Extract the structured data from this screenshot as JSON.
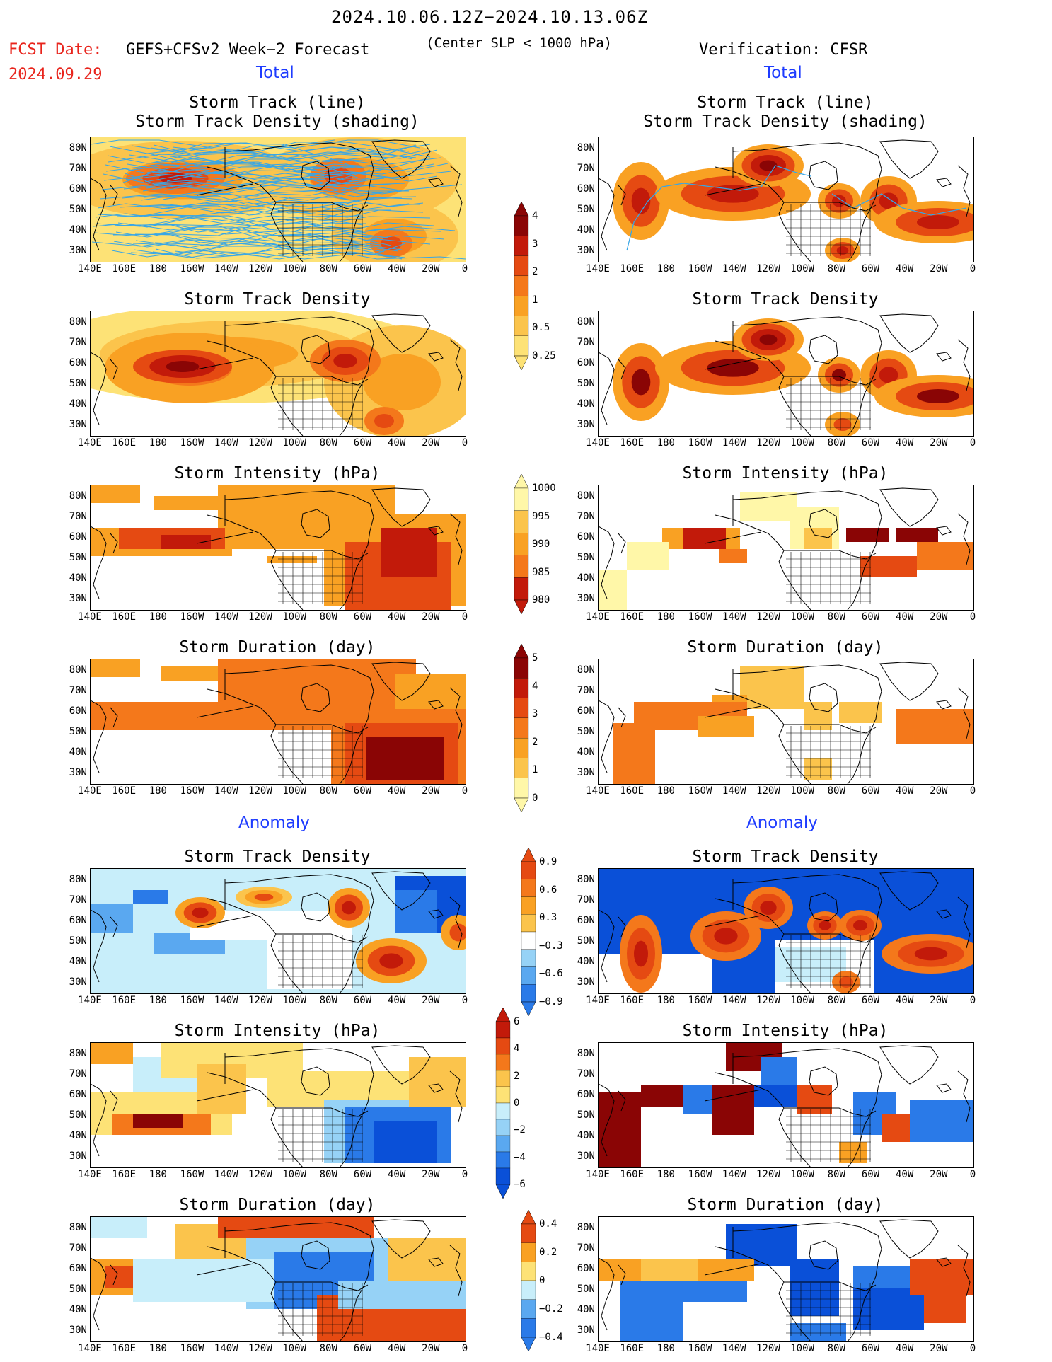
{
  "header": {
    "date_range": "2024.10.06.12Z−2024.10.13.06Z",
    "fcst_label": "FCST Date:",
    "fcst_date": "2024.09.29",
    "model": "GEFS+CFSv2 Week−2 Forecast",
    "criterion": "(Center SLP < 1000 hPa)",
    "verification": "Verification: CFSR"
  },
  "sections": {
    "total_left": "Total",
    "total_right": "Total",
    "anomaly_left": "Anomaly",
    "anomaly_right": "Anomaly"
  },
  "panel_titles": {
    "track_line": "Storm Track (line)",
    "track_density_shading": "Storm Track Density (shading)",
    "track_density": "Storm Track Density",
    "intensity": "Storm Intensity (hPa)",
    "duration": "Storm Duration (day)"
  },
  "axes": {
    "lat_labels": [
      "80N",
      "70N",
      "60N",
      "50N",
      "40N",
      "30N"
    ],
    "lon_labels": [
      "140E",
      "160E",
      "180",
      "160W",
      "140W",
      "120W",
      "100W",
      "80W",
      "60W",
      "40W",
      "20W",
      "0"
    ]
  },
  "colorbars": {
    "density_total": [
      "4",
      "3",
      "2",
      "1",
      "0.5",
      "0.25"
    ],
    "intensity_total": [
      "1000",
      "995",
      "990",
      "985",
      "980"
    ],
    "duration_total": [
      "5",
      "4",
      "3",
      "2",
      "1",
      "0"
    ],
    "density_anom": [
      "0.9",
      "0.6",
      "0.3",
      "−0.3",
      "−0.6",
      "−0.9"
    ],
    "intensity_anom": [
      "6",
      "4",
      "2",
      "0",
      "−2",
      "−4",
      "−6"
    ],
    "duration_anom": [
      "0.4",
      "0.2",
      "0",
      "−0.2",
      "−0.4"
    ]
  },
  "colors": {
    "warm": [
      "#fff7a8",
      "#fde276",
      "#fbc44c",
      "#f9a123",
      "#f4781b",
      "#e54a12",
      "#c21a0a",
      "#8a0505"
    ],
    "cool": [
      "#0a50d8",
      "#2a7ae8",
      "#5aa8f0",
      "#96d2f6",
      "#c8eefa"
    ],
    "track_line": "#38a6e6",
    "title_red": "#e8241c",
    "section_blue": "#1e3cff"
  }
}
